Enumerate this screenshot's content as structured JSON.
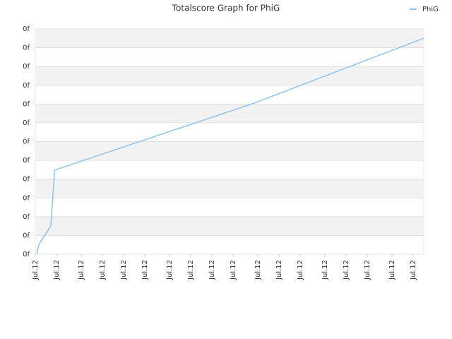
{
  "chart_data": {
    "type": "line",
    "title": "Totalscore Graph for PhiG",
    "x": [
      2,
      5,
      22,
      26,
      27,
      310,
      550
    ],
    "series": [
      {
        "name": "PhiG",
        "color": "#8cc4ee",
        "values": [
          0,
          0.53,
          1.5,
          3.76,
          4.48,
          8.05,
          11.51
        ]
      }
    ],
    "xlim": [
      0,
      550
    ],
    "xticks": [
      {
        "value": 0,
        "label": "Jul.12"
      },
      {
        "value": 30,
        "label": "Jul.12"
      },
      {
        "value": 65,
        "label": "Jul.12"
      },
      {
        "value": 95,
        "label": "Jul.12"
      },
      {
        "value": 125,
        "label": "Jul.12"
      },
      {
        "value": 155,
        "label": "Jul.12"
      },
      {
        "value": 190,
        "label": "Jul.12"
      },
      {
        "value": 220,
        "label": "Jul.12"
      },
      {
        "value": 250,
        "label": "Jul.12"
      },
      {
        "value": 280,
        "label": "Jul.12"
      },
      {
        "value": 315,
        "label": "Jul.12"
      },
      {
        "value": 345,
        "label": "Jul.12"
      },
      {
        "value": 375,
        "label": "Jul.12"
      },
      {
        "value": 410,
        "label": "Jul.12"
      },
      {
        "value": 440,
        "label": "Jul.12"
      },
      {
        "value": 470,
        "label": "Jul.12"
      },
      {
        "value": 505,
        "label": "Jul.12"
      },
      {
        "value": 535,
        "label": "Jul.12"
      }
    ],
    "ylim": [
      0,
      12
    ],
    "yticks": [
      {
        "value": 0,
        "label": "0f"
      },
      {
        "value": 1,
        "label": "0f"
      },
      {
        "value": 2,
        "label": "0f"
      },
      {
        "value": 3,
        "label": "0f"
      },
      {
        "value": 4,
        "label": "0f"
      },
      {
        "value": 5,
        "label": "0f"
      },
      {
        "value": 6,
        "label": "0f"
      },
      {
        "value": 7,
        "label": "0f"
      },
      {
        "value": 8,
        "label": "0f"
      },
      {
        "value": 9,
        "label": "0f"
      },
      {
        "value": 10,
        "label": "0f"
      },
      {
        "value": 11,
        "label": "0f"
      },
      {
        "value": 12,
        "label": "0f"
      }
    ],
    "grid": true,
    "legend": "top-right"
  }
}
